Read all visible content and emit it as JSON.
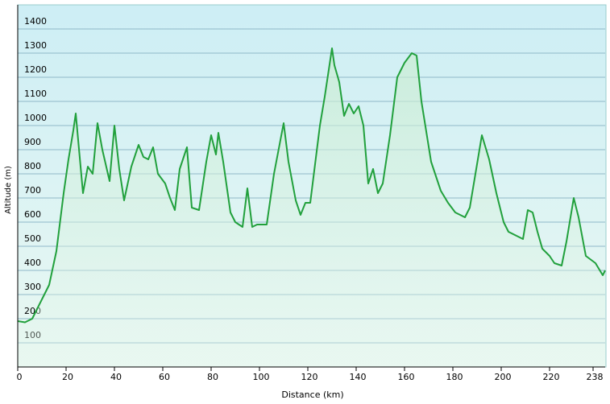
{
  "chart_data": {
    "type": "line",
    "xlabel": "Distance  (km)",
    "ylabel": "Altitude (m)",
    "x": [
      0,
      3,
      6,
      8,
      11,
      13,
      16,
      17,
      19,
      21,
      23,
      24,
      27,
      29,
      31,
      33,
      35,
      38,
      40,
      42,
      44,
      47,
      50,
      52,
      54,
      56,
      58,
      61,
      63,
      65,
      67,
      70,
      72,
      75,
      78,
      80,
      82,
      83,
      85,
      88,
      90,
      93,
      95,
      97,
      99,
      103,
      106,
      110,
      112,
      115,
      117,
      119,
      121,
      125,
      127,
      130,
      131,
      133,
      135,
      137,
      139,
      141,
      143,
      145,
      147,
      149,
      151,
      154,
      157,
      160,
      163,
      165,
      167,
      171,
      175,
      178,
      181,
      185,
      187,
      192,
      195,
      198,
      201,
      203,
      207,
      209,
      211,
      213,
      215,
      217,
      220,
      222,
      225,
      227,
      230,
      232,
      235,
      239,
      242,
      243
    ],
    "values": [
      190,
      185,
      200,
      240,
      300,
      340,
      480,
      560,
      720,
      860,
      980,
      1050,
      720,
      830,
      800,
      1010,
      900,
      770,
      1000,
      820,
      690,
      830,
      920,
      870,
      860,
      910,
      800,
      760,
      700,
      650,
      820,
      910,
      660,
      650,
      850,
      960,
      880,
      970,
      850,
      640,
      600,
      580,
      740,
      580,
      590,
      590,
      800,
      1010,
      850,
      690,
      630,
      680,
      680,
      1000,
      1120,
      1320,
      1250,
      1180,
      1040,
      1090,
      1050,
      1080,
      1000,
      760,
      820,
      720,
      760,
      960,
      1200,
      1260,
      1300,
      1290,
      1100,
      850,
      730,
      680,
      640,
      620,
      660,
      960,
      860,
      720,
      600,
      560,
      540,
      530,
      650,
      640,
      560,
      490,
      460,
      430,
      420,
      520,
      700,
      620,
      460,
      430,
      380,
      400
    ],
    "color": "#21a03c",
    "xlim": [
      0,
      243
    ],
    "xticks": [
      0,
      20,
      40,
      60,
      80,
      100,
      120,
      140,
      160,
      180,
      200,
      220,
      238
    ],
    "ylim": [
      0,
      1500
    ],
    "yticks": [
      100,
      200,
      300,
      400,
      500,
      600,
      700,
      800,
      900,
      1000,
      1100,
      1200,
      1300,
      1400
    ],
    "grid": true
  }
}
